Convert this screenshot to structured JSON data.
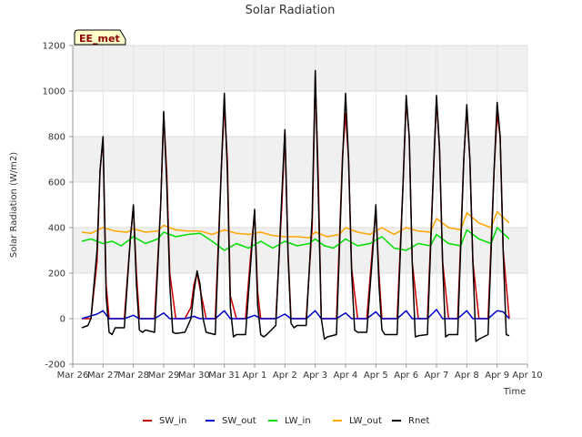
{
  "chart_data": {
    "type": "line",
    "title": "Solar Radiation",
    "xlabel": "Time",
    "ylabel": "Solar Radiation (W/m2)",
    "ylim": [
      -200,
      1200
    ],
    "yticks": [
      -200,
      0,
      200,
      400,
      600,
      800,
      1000,
      1200
    ],
    "xlim": [
      0,
      15
    ],
    "xticks": [
      "Mar 26",
      "Mar 27",
      "Mar 28",
      "Mar 29",
      "Mar 30",
      "Mar 31",
      "Apr 1",
      "Apr 2",
      "Apr 3",
      "Apr 4",
      "Apr 5",
      "Apr 6",
      "Apr 7",
      "Apr 8",
      "Apr 9",
      "Apr 10"
    ],
    "x_units": "days since Mar 26",
    "grid": true,
    "shaded_bands": [
      [
        200,
        400
      ],
      [
        600,
        800
      ],
      [
        1000,
        1200
      ]
    ],
    "legend_position": "bottom",
    "badge": "EE_met",
    "series": [
      {
        "name": "SW_in",
        "color": "#cc0000",
        "x": [
          0.3,
          0.6,
          0.8,
          0.9,
          1.0,
          1.1,
          1.2,
          1.4,
          1.7,
          1.9,
          2.0,
          2.1,
          2.2,
          2.4,
          2.7,
          2.9,
          3.0,
          3.1,
          3.2,
          3.4,
          3.7,
          3.9,
          4.0,
          4.1,
          4.2,
          4.4,
          4.7,
          4.9,
          5.0,
          5.1,
          5.2,
          5.4,
          5.7,
          5.9,
          6.0,
          6.1,
          6.2,
          6.4,
          6.7,
          6.9,
          7.0,
          7.1,
          7.2,
          7.4,
          7.7,
          7.9,
          8.0,
          8.1,
          8.2,
          8.4,
          8.7,
          8.9,
          9.0,
          9.1,
          9.2,
          9.4,
          9.7,
          9.9,
          10.0,
          10.1,
          10.2,
          10.4,
          10.7,
          10.9,
          11.0,
          11.1,
          11.2,
          11.4,
          11.7,
          11.9,
          12.0,
          12.1,
          12.2,
          12.4,
          12.7,
          12.9,
          13.0,
          13.1,
          13.2,
          13.4,
          13.7,
          13.9,
          14.0,
          14.1,
          14.2,
          14.4
        ],
        "y": [
          0,
          0,
          250,
          650,
          790,
          150,
          0,
          0,
          0,
          350,
          490,
          200,
          0,
          0,
          0,
          500,
          900,
          650,
          200,
          0,
          0,
          50,
          150,
          200,
          130,
          0,
          0,
          650,
          940,
          700,
          100,
          0,
          0,
          330,
          470,
          120,
          0,
          0,
          0,
          500,
          830,
          300,
          0,
          0,
          0,
          400,
          1060,
          620,
          0,
          0,
          0,
          720,
          900,
          700,
          220,
          0,
          0,
          330,
          480,
          200,
          0,
          0,
          0,
          600,
          960,
          800,
          250,
          0,
          0,
          650,
          960,
          750,
          250,
          0,
          0,
          700,
          920,
          700,
          250,
          0,
          0,
          650,
          900,
          800,
          300,
          0
        ]
      },
      {
        "name": "SW_out",
        "color": "#0000cc",
        "x": [
          0.3,
          0.8,
          1.0,
          1.2,
          1.7,
          2.0,
          2.2,
          2.7,
          3.0,
          3.2,
          3.7,
          4.0,
          4.2,
          4.7,
          5.0,
          5.2,
          5.7,
          6.0,
          6.2,
          6.7,
          7.0,
          7.2,
          7.7,
          8.0,
          8.2,
          8.7,
          9.0,
          9.2,
          9.7,
          10.0,
          10.2,
          10.7,
          11.0,
          11.2,
          11.7,
          12.0,
          12.2,
          12.7,
          13.0,
          13.2,
          13.7,
          14.0,
          14.2,
          14.4
        ],
        "y": [
          0,
          20,
          35,
          0,
          0,
          15,
          0,
          0,
          25,
          0,
          0,
          10,
          0,
          0,
          35,
          0,
          0,
          15,
          0,
          0,
          20,
          0,
          0,
          35,
          0,
          0,
          25,
          0,
          0,
          30,
          0,
          0,
          35,
          0,
          0,
          40,
          0,
          0,
          35,
          0,
          0,
          35,
          30,
          0
        ]
      },
      {
        "name": "LW_in",
        "color": "#00dd00",
        "x": [
          0.3,
          0.6,
          1.0,
          1.3,
          1.6,
          2.0,
          2.4,
          2.8,
          3.0,
          3.4,
          3.8,
          4.2,
          4.6,
          5.0,
          5.4,
          5.8,
          6.2,
          6.6,
          7.0,
          7.4,
          7.8,
          8.0,
          8.3,
          8.6,
          9.0,
          9.4,
          9.8,
          10.2,
          10.6,
          11.0,
          11.4,
          11.8,
          12.0,
          12.4,
          12.8,
          13.0,
          13.4,
          13.8,
          14.0,
          14.4
        ],
        "y": [
          340,
          350,
          330,
          340,
          320,
          360,
          330,
          350,
          380,
          360,
          370,
          375,
          340,
          300,
          330,
          310,
          340,
          310,
          340,
          320,
          330,
          350,
          320,
          310,
          350,
          320,
          330,
          360,
          310,
          300,
          330,
          320,
          370,
          330,
          320,
          390,
          350,
          330,
          400,
          350
        ]
      },
      {
        "name": "LW_out",
        "color": "#ffa500",
        "x": [
          0.3,
          0.6,
          1.0,
          1.4,
          1.8,
          2.0,
          2.4,
          2.8,
          3.0,
          3.4,
          3.8,
          4.2,
          4.6,
          5.0,
          5.4,
          5.8,
          6.2,
          6.6,
          7.0,
          7.4,
          7.8,
          8.0,
          8.4,
          8.8,
          9.0,
          9.4,
          9.8,
          10.2,
          10.6,
          11.0,
          11.4,
          11.8,
          12.0,
          12.4,
          12.8,
          13.0,
          13.4,
          13.8,
          14.0,
          14.4
        ],
        "y": [
          380,
          375,
          400,
          385,
          380,
          395,
          380,
          385,
          410,
          390,
          385,
          385,
          370,
          390,
          375,
          370,
          380,
          365,
          360,
          360,
          355,
          380,
          360,
          370,
          400,
          380,
          370,
          400,
          370,
          400,
          385,
          380,
          440,
          400,
          390,
          465,
          420,
          400,
          470,
          420
        ]
      },
      {
        "name": "Rnet",
        "color": "#000000",
        "x": [
          0.3,
          0.5,
          0.6,
          0.8,
          0.9,
          1.0,
          1.1,
          1.2,
          1.3,
          1.4,
          1.7,
          1.9,
          2.0,
          2.1,
          2.2,
          2.3,
          2.4,
          2.7,
          2.9,
          3.0,
          3.1,
          3.2,
          3.3,
          3.4,
          3.7,
          3.9,
          4.0,
          4.1,
          4.2,
          4.3,
          4.4,
          4.7,
          4.9,
          5.0,
          5.1,
          5.2,
          5.3,
          5.4,
          5.7,
          5.9,
          6.0,
          6.1,
          6.2,
          6.3,
          6.4,
          6.7,
          6.9,
          7.0,
          7.1,
          7.2,
          7.3,
          7.4,
          7.7,
          7.9,
          8.0,
          8.1,
          8.2,
          8.3,
          8.4,
          8.7,
          8.9,
          9.0,
          9.1,
          9.2,
          9.3,
          9.4,
          9.7,
          9.9,
          10.0,
          10.1,
          10.2,
          10.3,
          10.4,
          10.7,
          10.9,
          11.0,
          11.1,
          11.2,
          11.3,
          11.4,
          11.7,
          11.9,
          12.0,
          12.1,
          12.2,
          12.3,
          12.4,
          12.7,
          12.9,
          13.0,
          13.1,
          13.2,
          13.3,
          13.4,
          13.7,
          13.9,
          14.0,
          14.1,
          14.2,
          14.3,
          14.4
        ],
        "y": [
          -40,
          -30,
          0,
          300,
          650,
          800,
          100,
          -60,
          -70,
          -40,
          -40,
          350,
          500,
          150,
          -50,
          -60,
          -50,
          -60,
          500,
          910,
          600,
          150,
          -60,
          -65,
          -60,
          0,
          120,
          210,
          150,
          0,
          -60,
          -70,
          650,
          990,
          650,
          50,
          -80,
          -70,
          -70,
          300,
          480,
          60,
          -70,
          -80,
          -70,
          -30,
          550,
          830,
          280,
          -20,
          -40,
          -30,
          -30,
          450,
          1090,
          550,
          0,
          -90,
          -80,
          -70,
          700,
          990,
          700,
          200,
          -50,
          -60,
          -60,
          300,
          500,
          150,
          -50,
          -70,
          -70,
          -70,
          600,
          980,
          800,
          250,
          -80,
          -75,
          -70,
          650,
          980,
          750,
          250,
          -80,
          -70,
          -70,
          700,
          940,
          700,
          250,
          -100,
          -90,
          -70,
          650,
          950,
          800,
          300,
          -70,
          -75
        ]
      }
    ]
  }
}
